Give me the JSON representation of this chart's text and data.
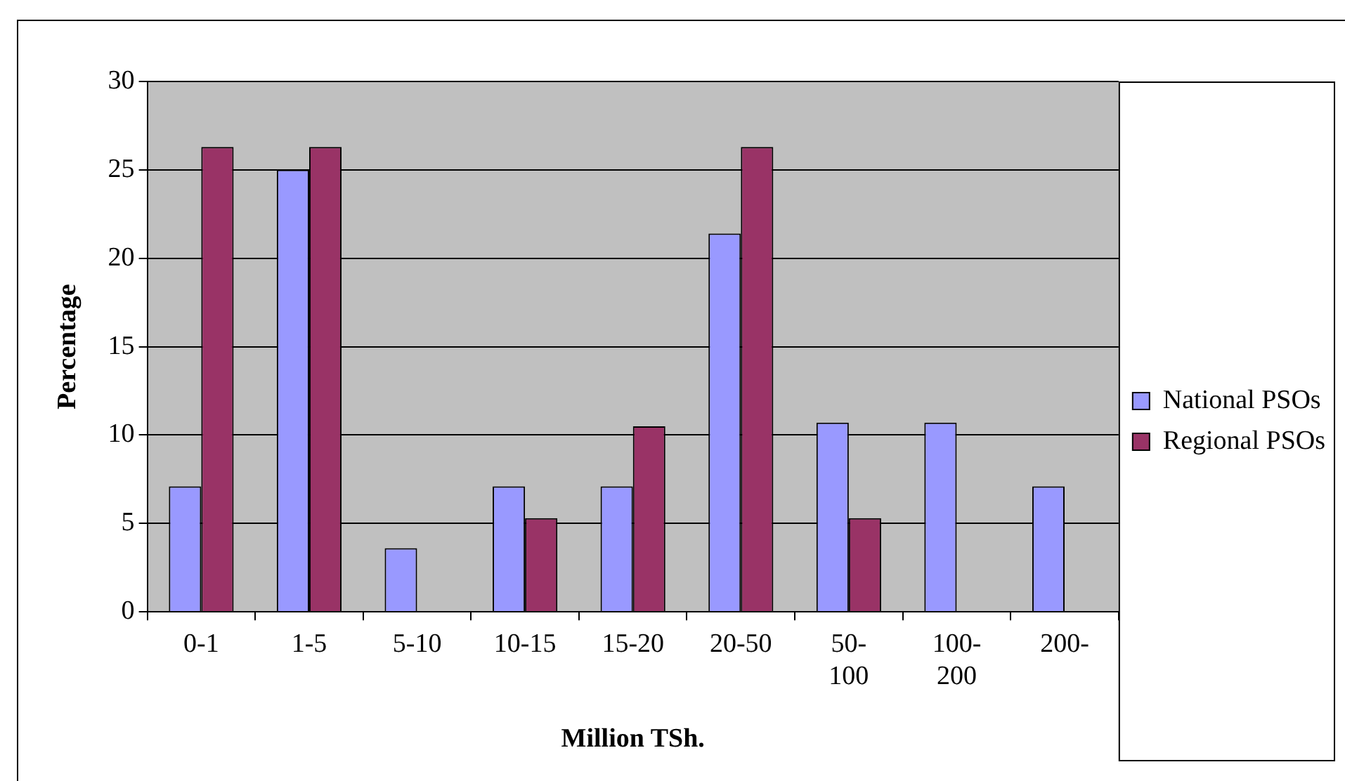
{
  "chart_data": {
    "type": "bar",
    "xlabel": "Million TSh.",
    "ylabel": "Percentage",
    "categories": [
      "0-1",
      "1-5",
      "5-10",
      "10-15",
      "15-20",
      "20-50",
      "50-100",
      "100-200",
      "200-"
    ],
    "series": [
      {
        "name": "National PSOs",
        "color": "#9999ff",
        "values": [
          7.1,
          25,
          3.6,
          7.1,
          7.1,
          21.4,
          10.7,
          10.7,
          7.1
        ]
      },
      {
        "name": "Regional PSOs",
        "color": "#993366",
        "values": [
          26.3,
          26.3,
          0,
          5.3,
          10.5,
          26.3,
          5.3,
          0,
          0
        ]
      }
    ],
    "ylim": [
      0,
      30
    ],
    "yticks": [
      0,
      5,
      10,
      15,
      20,
      25,
      30
    ],
    "grid": "y",
    "legend": "right"
  }
}
